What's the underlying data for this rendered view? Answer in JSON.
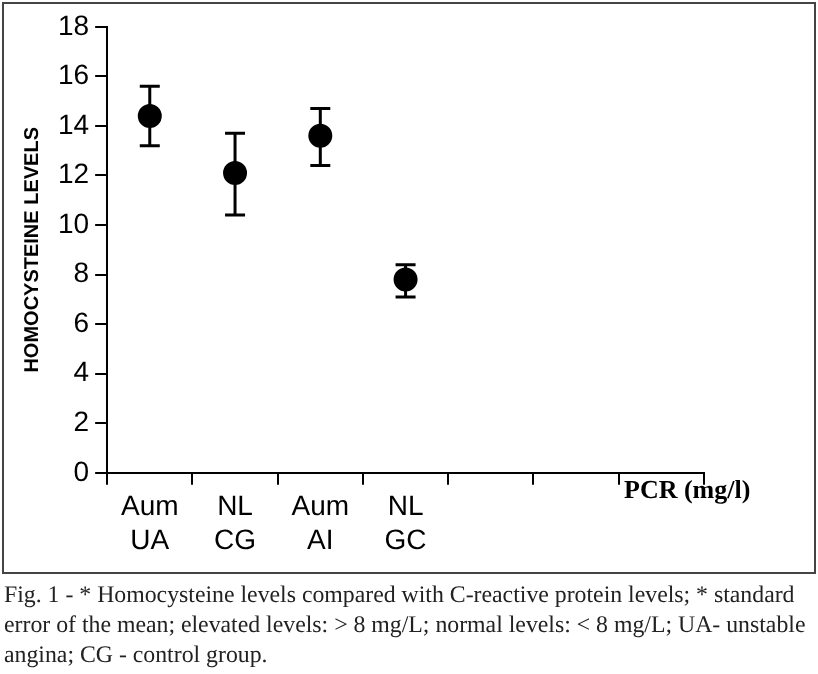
{
  "chart_data": {
    "type": "scatter",
    "ylabel": "HOMOCYSTEINE LEVELS",
    "xlabel": "PCR (mg/l)",
    "categories": [
      "Aum\nUA",
      "NL\nCG",
      "Aum\nAI",
      "NL\nGC",
      null,
      null,
      null
    ],
    "values": [
      14.4,
      12.1,
      13.6,
      7.8,
      null,
      null,
      null
    ],
    "errors": [
      [
        13.2,
        15.6
      ],
      [
        10.4,
        13.7
      ],
      [
        12.4,
        14.7
      ],
      [
        7.1,
        8.4
      ],
      null,
      null,
      null
    ],
    "color": "#000000",
    "marker": "circle",
    "grid": false,
    "legend": false,
    "ylim": [
      0,
      18
    ],
    "yticks": [
      0,
      2,
      4,
      6,
      8,
      10,
      12,
      14,
      16,
      18
    ],
    "annotations": [
      "Fig. 1 - * Homocysteine levels compared with C-reactive protein levels; * standard error of the mean; elevated levels: > 8 mg/L; normal levels: < 8 mg/L; UA- unstable angina; CG - control group."
    ]
  }
}
